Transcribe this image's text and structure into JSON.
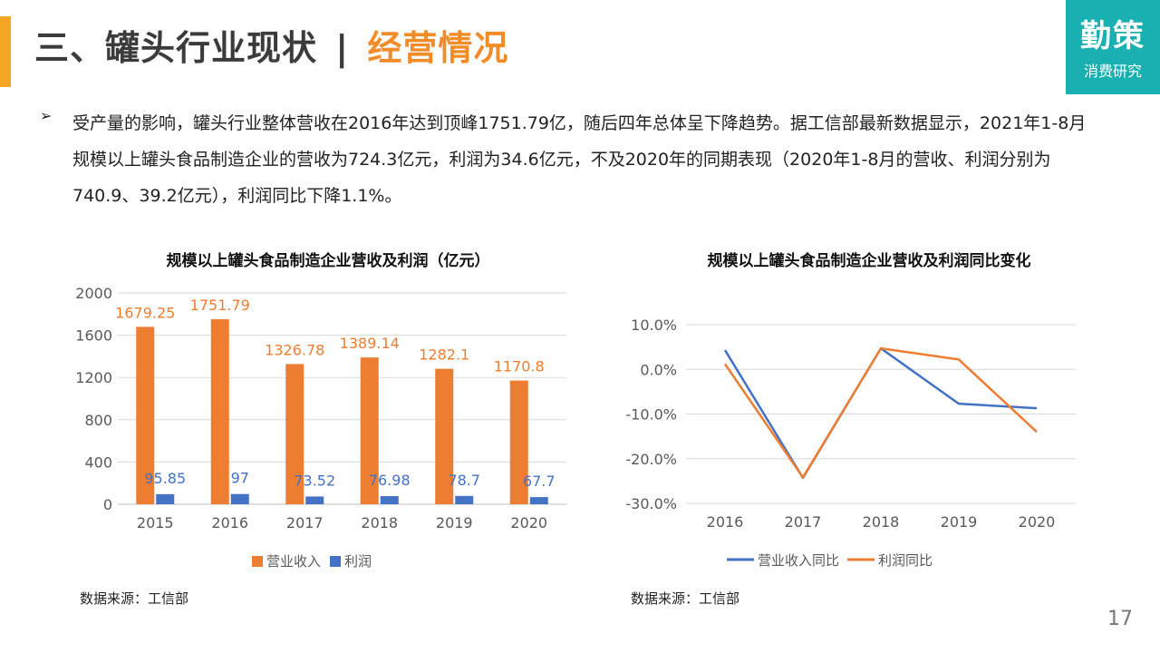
{
  "header": {
    "title_main": "三、罐头行业现状",
    "title_sep": "|",
    "title_sub": "经营情况",
    "logo_big": "勤策",
    "logo_small": "消费研究",
    "page_number": "17"
  },
  "intro": {
    "bullet": "➢",
    "text": "受产量的影响，罐头行业整体营收在2016年达到顶峰1751.79亿，随后四年总体呈下降趋势。据工信部最新数据显示，2021年1-8月规模以上罐头食品制造企业的营收为724.3亿元，利润为34.6亿元，不及2020年的同期表现（2020年1-8月的营收、利润分别为740.9、39.2亿元），利润同比下降1.1%。"
  },
  "sources": {
    "left": "数据来源：工信部",
    "right": "数据来源：工信部"
  },
  "chart_data": [
    {
      "type": "bar",
      "title": "规模以上罐头食品制造企业营收及利润（亿元）",
      "categories": [
        "2015",
        "2016",
        "2017",
        "2018",
        "2019",
        "2020"
      ],
      "series": [
        {
          "name": "营业收入",
          "values": [
            1679.25,
            1751.79,
            1326.78,
            1389.14,
            1282.1,
            1170.8
          ],
          "labels": [
            "1679.25",
            "1751.79",
            "1326.78",
            "1389.14",
            "1282.1",
            "1170.8"
          ],
          "color": "#ED7D31"
        },
        {
          "name": "利润",
          "values": [
            95.85,
            97,
            73.52,
            76.98,
            78.7,
            67.7
          ],
          "labels": [
            "95.85",
            "97",
            "73.52",
            "76.98",
            "78.7",
            "67.7"
          ],
          "color": "#4472C4"
        }
      ],
      "ylim": [
        0,
        2000
      ],
      "yticks": [
        0,
        400,
        800,
        1200,
        1600,
        2000
      ],
      "ytick_labels": [
        "0",
        "400",
        "800",
        "1200",
        "1600",
        "2000"
      ],
      "grid": true,
      "legend": "bottom"
    },
    {
      "type": "line",
      "title": "规模以上罐头食品制造企业营收及利润同比变化",
      "categories": [
        "2016",
        "2017",
        "2018",
        "2019",
        "2020"
      ],
      "series": [
        {
          "name": "营业收入同比",
          "values": [
            4.3,
            -24.3,
            4.7,
            -7.7,
            -8.7
          ],
          "color": "#4472C4"
        },
        {
          "name": "利润同比",
          "values": [
            1.2,
            -24.2,
            4.7,
            2.2,
            -14.0
          ],
          "color": "#ED7D31"
        }
      ],
      "ylim": [
        -30,
        10
      ],
      "yticks": [
        -30,
        -20,
        -10,
        0,
        10
      ],
      "ytick_labels": [
        "-30.0%",
        "-20.0%",
        "-10.0%",
        "0.0%",
        "10.0%"
      ],
      "grid": true,
      "legend": "bottom"
    }
  ]
}
